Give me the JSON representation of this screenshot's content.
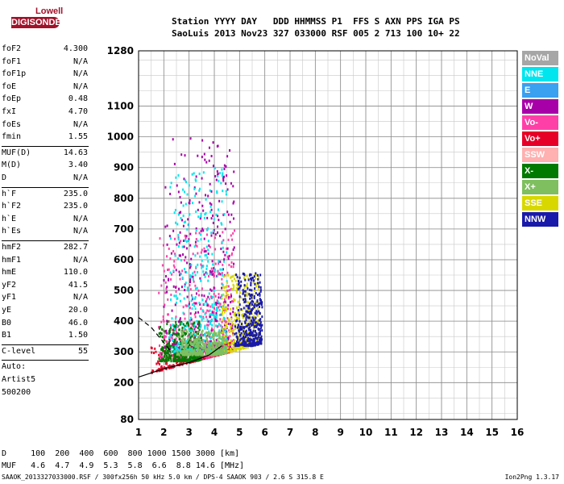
{
  "logo": {
    "brand_top": "Lowell",
    "brand_bottom": "DIGISONDE"
  },
  "header": {
    "line1": "Station YYYY DAY   DDD HHMMSS P1  FFS S AXN PPS IGA PS",
    "line2": "SaoLuis 2013 Nov23 327 033000 RSF 005 2 713 100 10+ 22"
  },
  "params": [
    {
      "k": "foF2",
      "v": "4.300"
    },
    {
      "k": "foF1",
      "v": "N/A"
    },
    {
      "k": "foF1p",
      "v": "N/A"
    },
    {
      "k": "foE",
      "v": "N/A"
    },
    {
      "k": "foEp",
      "v": "0.48"
    },
    {
      "k": "fxI",
      "v": "4.70"
    },
    {
      "k": "foEs",
      "v": "N/A"
    },
    {
      "k": "fmin",
      "v": "1.55"
    },
    {
      "k": "MUF(D)",
      "v": "14.63"
    },
    {
      "k": "M(D)",
      "v": "3.40"
    },
    {
      "k": "D",
      "v": "N/A"
    },
    {
      "k": "h`F",
      "v": "235.0"
    },
    {
      "k": "h`F2",
      "v": "235.0"
    },
    {
      "k": "h`E",
      "v": "N/A"
    },
    {
      "k": "h`Es",
      "v": "N/A"
    },
    {
      "k": "hmF2",
      "v": "282.7"
    },
    {
      "k": "hmF1",
      "v": "N/A"
    },
    {
      "k": "hmE",
      "v": "110.0"
    },
    {
      "k": "yF2",
      "v": "41.5"
    },
    {
      "k": "yF1",
      "v": "N/A"
    },
    {
      "k": "yE",
      "v": "20.0"
    },
    {
      "k": "B0",
      "v": "46.0"
    },
    {
      "k": "B1",
      "v": "1.50"
    },
    {
      "k": "C-level",
      "v": "55"
    },
    {
      "k": "Auto:",
      "v": ""
    },
    {
      "k": "Artist5",
      "v": ""
    },
    {
      "k": "500200",
      "v": ""
    }
  ],
  "legend": [
    {
      "label": "NoVal",
      "color": "#a6a6a6"
    },
    {
      "label": "NNE",
      "color": "#00e5ee"
    },
    {
      "label": "E",
      "color": "#3aa0f0"
    },
    {
      "label": "W",
      "color": "#a800a8"
    },
    {
      "label": "Vo-",
      "color": "#ff3fa8"
    },
    {
      "label": "Vo+",
      "color": "#e60028"
    },
    {
      "label": "SSW",
      "color": "#ffb0b0"
    },
    {
      "label": "X-",
      "color": "#007a00"
    },
    {
      "label": "X+",
      "color": "#7fbf5f"
    },
    {
      "label": "SSE",
      "color": "#d8d800"
    },
    {
      "label": "NNW",
      "color": "#1a1aaa"
    }
  ],
  "footer": {
    "line1": "D     100  200  400  600  800 1000 1500 3000 [km]",
    "line2": "MUF   4.6  4.7  4.9  5.3  5.8  6.6  8.8 14.6 [MHz]",
    "line3": "SAAOK_2013327033000.RSF / 300fx256h 50 kHz 5.0 km / DPS-4 SAAOK 903 / 2.6 S 315.8 E",
    "version": "Ion2Png 1.3.17"
  },
  "chart_data": {
    "type": "scatter",
    "xlim": [
      1,
      16
    ],
    "ylim": [
      80,
      1280
    ],
    "xticks": [
      1,
      2,
      3,
      4,
      5,
      6,
      7,
      8,
      9,
      10,
      11,
      12,
      13,
      14,
      15,
      16
    ],
    "yticks": [
      80,
      200,
      300,
      400,
      500,
      600,
      700,
      800,
      900,
      1000,
      1100,
      1280
    ],
    "x_minor_step": 0.5,
    "y_minor_step": 50,
    "grid": true,
    "legend_position": "right",
    "clusters": [
      {
        "series": "Vo+",
        "color": "#e60028",
        "x": [
          1.5,
          4.7
        ],
        "y": [
          230,
          330
        ]
      },
      {
        "series": "Vo-",
        "color": "#ff3fa8",
        "x": [
          1.8,
          4.8
        ],
        "y": [
          280,
          700
        ]
      },
      {
        "series": "W",
        "color": "#a800a8",
        "x": [
          2.0,
          4.8
        ],
        "y": [
          300,
          1000
        ]
      },
      {
        "series": "X-",
        "color": "#007a00",
        "x": [
          1.8,
          3.5
        ],
        "y": [
          270,
          400
        ]
      },
      {
        "series": "NNE",
        "color": "#00e5ee",
        "x": [
          2.2,
          4.5
        ],
        "y": [
          300,
          900
        ]
      },
      {
        "series": "SSE",
        "color": "#d8d800",
        "x": [
          4.3,
          5.8
        ],
        "y": [
          300,
          550
        ]
      },
      {
        "series": "NNW",
        "color": "#1a1aaa",
        "x": [
          4.8,
          5.9
        ],
        "y": [
          320,
          560
        ]
      },
      {
        "series": "X+",
        "color": "#7fbf5f",
        "x": [
          2.5,
          4.5
        ],
        "y": [
          290,
          370
        ]
      }
    ],
    "curves": [
      {
        "name": "trace",
        "style": "solid",
        "x": [
          1.0,
          2.0,
          3.0,
          3.8,
          4.3
        ],
        "y": [
          218,
          245,
          265,
          290,
          320
        ]
      },
      {
        "name": "model",
        "style": "dashed",
        "x": [
          1.0,
          1.5,
          2.0,
          2.3
        ],
        "y": [
          412,
          380,
          330,
          300
        ]
      }
    ]
  }
}
